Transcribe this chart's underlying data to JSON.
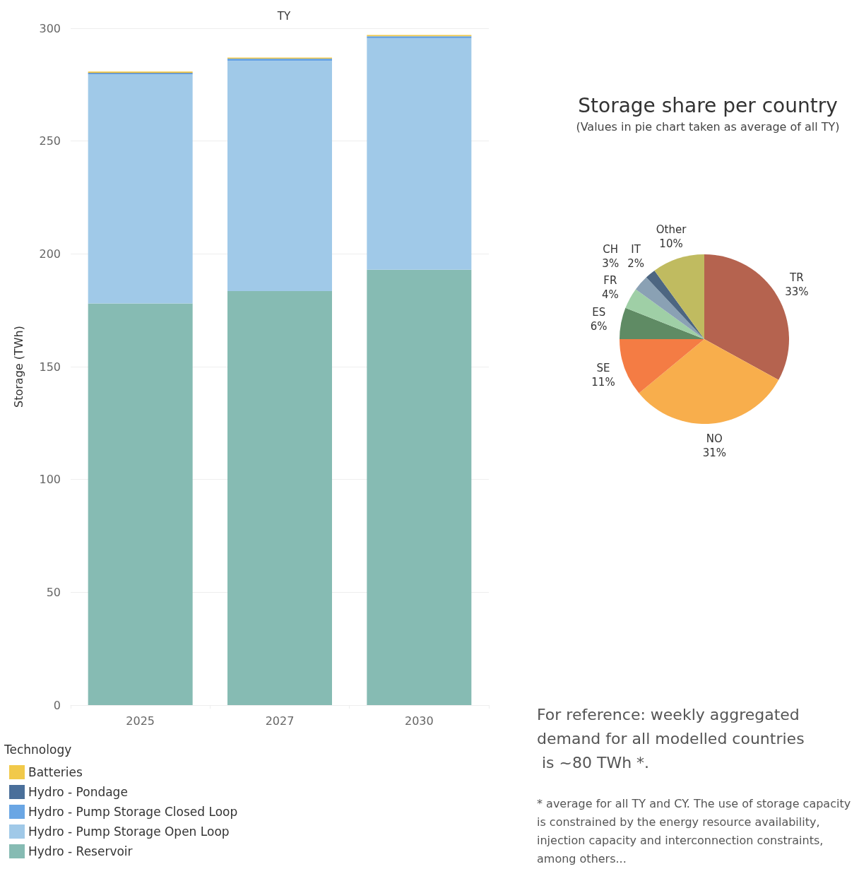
{
  "chart_data": [
    {
      "type": "bar",
      "title": "TY",
      "ylabel": "Storage (TWh)",
      "legend_title": "Technology",
      "categories": [
        "2025",
        "2027",
        "2030"
      ],
      "stacked": true,
      "ylim": [
        0,
        300
      ],
      "yticks": [
        0,
        50,
        100,
        150,
        200,
        250,
        300
      ],
      "grid": "y",
      "legend": "bottom left",
      "series": [
        {
          "name": "Hydro - Reservoir",
          "color": "#86bbb3",
          "values": [
            178,
            183.5,
            193
          ]
        },
        {
          "name": "Hydro - Pump Storage Open Loop",
          "color": "#a0c9e8",
          "values": [
            101.5,
            102,
            102.5
          ]
        },
        {
          "name": "Hydro - Pump Storage Closed Loop",
          "color": "#6aa6e4",
          "values": [
            0.5,
            1,
            1
          ]
        },
        {
          "name": "Hydro - Pondage",
          "color": "#4a6f9a",
          "values": [
            0.3,
            null,
            null
          ]
        },
        {
          "name": "Batteries",
          "color": "#f1c94a",
          "values": [
            0.5,
            0.5,
            0.5
          ]
        }
      ]
    },
    {
      "type": "pie",
      "title": "Storage share per country",
      "subtitle": "(Values in pie chart taken as average of all TY)",
      "categories": [
        "TR",
        "NO",
        "SE",
        "ES",
        "FR",
        "CH",
        "IT",
        "Other"
      ],
      "values": [
        33,
        31,
        11,
        6,
        4,
        3,
        2,
        10
      ],
      "value_labels": [
        "33%",
        "31%",
        "11%",
        "6%",
        "4%",
        "3%",
        "2%",
        "10%"
      ],
      "colors": [
        "#b5634f",
        "#f8ae4c",
        "#f47c44",
        "#5f8b64",
        "#9fcfa6",
        "#8aa1b4",
        "#4d6681",
        "#c0bb60"
      ],
      "annotations": [
        "For reference: weekly aggregated demand for all modelled countries is ~80 TWh *.",
        "* average for all TY and CY. The use of storage capacity is constrained by the energy resource availability, injection capacity and interconnection constraints, among others..."
      ]
    }
  ]
}
